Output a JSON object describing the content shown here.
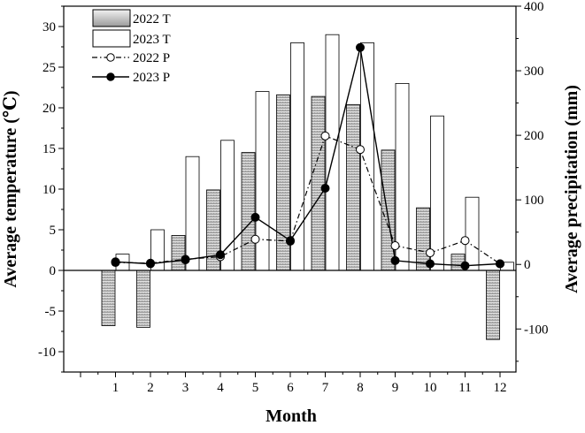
{
  "chart_data": {
    "type": "bar+line",
    "categories": [
      "1",
      "2",
      "3",
      "4",
      "5",
      "6",
      "7",
      "8",
      "9",
      "10",
      "11",
      "12"
    ],
    "xlabel": "Month",
    "ylabel_left": "Average temperature (℃)",
    "ylabel_right": "Average precipitation (mm)",
    "ylim_left": [
      -12.5,
      32.5
    ],
    "ylim_right": [
      -166.67,
      400
    ],
    "yticks_left": [
      "-10",
      "-5",
      "0",
      "5",
      "10",
      "15",
      "20",
      "25",
      "30"
    ],
    "yticks_right": [
      "-100",
      "0",
      "100",
      "200",
      "300",
      "400"
    ],
    "bar_series": [
      {
        "name": "2022 T",
        "axis": "left",
        "style": "gradient-gray",
        "values": [
          -6.8,
          -7.0,
          4.3,
          9.9,
          14.5,
          21.6,
          21.4,
          20.4,
          14.8,
          7.7,
          2.0,
          -8.5
        ]
      },
      {
        "name": "2023 T",
        "axis": "left",
        "style": "white",
        "values": [
          2.0,
          5.0,
          14.0,
          16.0,
          22.0,
          28.0,
          29.0,
          28.0,
          23.0,
          19.0,
          9.0,
          1.0
        ]
      }
    ],
    "line_series": [
      {
        "name": "2022 P",
        "axis": "right",
        "style": "dash-dot, open circles",
        "values": [
          3,
          2,
          8,
          12,
          39,
          36,
          199,
          178,
          29,
          18,
          37,
          1
        ]
      },
      {
        "name": "2023 P",
        "axis": "right",
        "style": "solid, filled circles",
        "values": [
          4,
          1,
          7,
          15,
          73,
          37,
          118,
          336,
          6,
          1,
          -2,
          1
        ]
      }
    ],
    "legend": [
      "2022 T",
      "2023 T",
      "2022 P",
      "2023 P"
    ],
    "legend_position": "top-left"
  }
}
